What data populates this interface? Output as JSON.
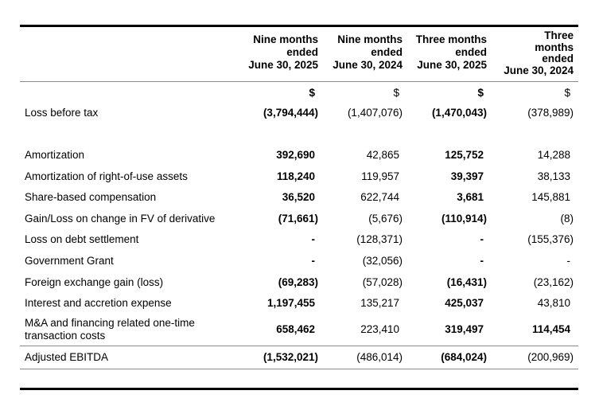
{
  "table": {
    "header": {
      "columns": [
        "Nine months\nended\nJune 30, 2025",
        "Nine months\nended\nJune 30, 2024",
        "Three months\nended\nJune 30, 2025",
        "Three\nmonths\nended\nJune 30, 2024"
      ],
      "currency_symbols": [
        "$",
        "$",
        "$",
        "$"
      ]
    },
    "rows": [
      {
        "label": "Loss before tax",
        "values": [
          "(3,794,444)",
          "(1,407,076)",
          "(1,470,043)",
          "(378,989)"
        ]
      },
      {
        "label": "Amortization",
        "values": [
          "392,690",
          "42,865",
          "125,752",
          "14,288"
        ]
      },
      {
        "label": "Amortization of right-of-use assets",
        "values": [
          "118,240",
          "119,957",
          "39,397",
          "38,133"
        ]
      },
      {
        "label": "Share-based compensation",
        "values": [
          "36,520",
          "622,744",
          "3,681",
          "145,881"
        ]
      },
      {
        "label": "Gain/Loss on change in FV of derivative",
        "values": [
          "(71,661)",
          "(5,676)",
          "(110,914)",
          "(8)"
        ]
      },
      {
        "label": "Loss on debt settlement",
        "values": [
          "-",
          "(128,371)",
          "-",
          "(155,376)"
        ]
      },
      {
        "label": "Government Grant",
        "values": [
          "-",
          "(32,056)",
          "-",
          "-"
        ]
      },
      {
        "label": "Foreign exchange gain (loss)",
        "values": [
          "(69,283)",
          "(57,028)",
          "(16,431)",
          "(23,162)"
        ]
      },
      {
        "label": "Interest and accretion expense",
        "values": [
          "1,197,455",
          "135,217",
          "425,037",
          "43,810"
        ]
      },
      {
        "label": "M&A and financing related one-time\ntransaction costs",
        "values": [
          "658,462",
          "223,410",
          "319,497",
          "114,454"
        ]
      },
      {
        "label": "Adjusted EBITDA",
        "values": [
          "(1,532,021)",
          "(486,014)",
          "(684,024)",
          "(200,969)"
        ]
      }
    ]
  }
}
